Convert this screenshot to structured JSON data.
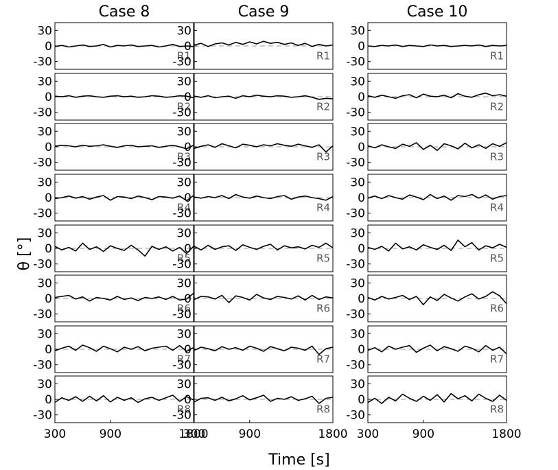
{
  "chart_data": {
    "type": "line",
    "columns": [
      "Case 8",
      "Case 9",
      "Case 10"
    ],
    "rows": [
      "R1",
      "R2",
      "R3",
      "R4",
      "R5",
      "R6",
      "R7",
      "R8"
    ],
    "xlabel": "Time [s]",
    "ylabel": "θ [°]",
    "xlim": [
      300,
      1800
    ],
    "xticks": [
      300,
      900,
      1800
    ],
    "ylim": [
      -45,
      45
    ],
    "yticks": [
      30,
      0,
      -30
    ],
    "x": [
      300,
      375,
      450,
      525,
      600,
      675,
      750,
      825,
      900,
      975,
      1050,
      1125,
      1200,
      1275,
      1350,
      1425,
      1500,
      1575,
      1650,
      1725,
      1800
    ],
    "reference": 0,
    "panels": [
      [
        {
          "label": "R1",
          "values": [
            -1,
            1,
            -2,
            0,
            2,
            -1,
            0,
            3,
            -2,
            1,
            0,
            2,
            -1,
            0,
            1,
            -2,
            0,
            3,
            -1,
            0,
            -1
          ]
        },
        {
          "label": "R2",
          "values": [
            1,
            0,
            2,
            -1,
            1,
            2,
            0,
            -1,
            1,
            2,
            0,
            1,
            -1,
            0,
            2,
            1,
            -1,
            0,
            2,
            1,
            -2
          ]
        },
        {
          "label": "R3",
          "values": [
            1,
            3,
            2,
            0,
            3,
            1,
            2,
            4,
            1,
            -1,
            2,
            3,
            0,
            1,
            2,
            -1,
            1,
            3,
            0,
            -4,
            3
          ]
        },
        {
          "label": "R4",
          "values": [
            -2,
            0,
            3,
            -1,
            2,
            -3,
            1,
            4,
            -5,
            2,
            1,
            -2,
            3,
            0,
            -4,
            2,
            1,
            -1,
            3,
            -6,
            4
          ]
        },
        {
          "label": "R5",
          "values": [
            4,
            -3,
            2,
            -5,
            10,
            -2,
            3,
            -6,
            5,
            0,
            -4,
            6,
            -3,
            -15,
            4,
            -2,
            3,
            -5,
            2,
            -10,
            4
          ]
        },
        {
          "label": "R6",
          "values": [
            2,
            4,
            6,
            -1,
            3,
            -5,
            2,
            0,
            -3,
            4,
            -2,
            1,
            -4,
            2,
            0,
            3,
            -2,
            4,
            -3,
            -1,
            10
          ]
        },
        {
          "label": "R7",
          "values": [
            -3,
            2,
            6,
            -2,
            8,
            3,
            -4,
            6,
            1,
            -5,
            4,
            0,
            5,
            -3,
            2,
            4,
            6,
            -2,
            7,
            -4,
            3
          ]
        },
        {
          "label": "R8",
          "values": [
            -6,
            3,
            -2,
            5,
            -4,
            6,
            -3,
            7,
            -5,
            4,
            -2,
            3,
            -6,
            1,
            4,
            -2,
            3,
            8,
            -4,
            5,
            -1
          ]
        }
      ],
      [
        {
          "label": "R1",
          "values": [
            2,
            5,
            -1,
            4,
            6,
            2,
            7,
            3,
            8,
            4,
            9,
            5,
            7,
            3,
            6,
            1,
            5,
            -1,
            3,
            0,
            2
          ]
        },
        {
          "label": "R2",
          "values": [
            1,
            -1,
            2,
            -2,
            0,
            1,
            -3,
            2,
            0,
            3,
            1,
            0,
            2,
            1,
            -1,
            0,
            2,
            -1,
            -5,
            -3,
            -4
          ]
        },
        {
          "label": "R3",
          "values": [
            -3,
            1,
            4,
            -1,
            6,
            2,
            -2,
            5,
            3,
            0,
            4,
            2,
            6,
            3,
            1,
            5,
            2,
            -1,
            4,
            -10,
            2
          ]
        },
        {
          "label": "R4",
          "values": [
            1,
            -1,
            2,
            0,
            4,
            -2,
            6,
            1,
            -1,
            3,
            0,
            -2,
            2,
            4,
            -3,
            1,
            3,
            0,
            -2,
            -5,
            2
          ]
        },
        {
          "label": "R5",
          "values": [
            4,
            -3,
            6,
            -2,
            3,
            5,
            -4,
            7,
            2,
            -2,
            4,
            8,
            -3,
            5,
            1,
            3,
            -1,
            6,
            2,
            10,
            1
          ]
        },
        {
          "label": "R6",
          "values": [
            -2,
            4,
            3,
            -1,
            6,
            -8,
            5,
            2,
            -3,
            8,
            1,
            -2,
            4,
            2,
            -1,
            5,
            -3,
            6,
            -2,
            3,
            1
          ]
        },
        {
          "label": "R7",
          "values": [
            -2,
            4,
            1,
            -3,
            5,
            0,
            3,
            -2,
            6,
            2,
            -4,
            5,
            1,
            -3,
            4,
            2,
            -2,
            6,
            -10,
            1,
            4
          ]
        },
        {
          "label": "R8",
          "values": [
            -5,
            2,
            3,
            -2,
            4,
            -3,
            1,
            7,
            -1,
            3,
            8,
            -4,
            2,
            0,
            5,
            -2,
            1,
            6,
            -8,
            2,
            4
          ]
        }
      ],
      [
        {
          "label": "R1",
          "values": [
            0,
            -1,
            1,
            0,
            2,
            -1,
            1,
            0,
            -1,
            2,
            0,
            1,
            -1,
            0,
            1,
            0,
            2,
            -1,
            1,
            0,
            1
          ]
        },
        {
          "label": "R2",
          "values": [
            2,
            -1,
            3,
            0,
            -3,
            2,
            4,
            -2,
            5,
            1,
            0,
            3,
            -2,
            6,
            1,
            -1,
            4,
            7,
            2,
            4,
            1
          ]
        },
        {
          "label": "R3",
          "values": [
            2,
            -2,
            4,
            0,
            -3,
            5,
            1,
            8,
            -5,
            3,
            -7,
            6,
            2,
            -4,
            7,
            -2,
            4,
            -3,
            6,
            1,
            8
          ]
        },
        {
          "label": "R4",
          "values": [
            -1,
            3,
            -2,
            4,
            0,
            -3,
            5,
            1,
            -4,
            6,
            -2,
            3,
            -5,
            4,
            2,
            6,
            -1,
            5,
            -3,
            2,
            4
          ]
        },
        {
          "label": "R5",
          "values": [
            2,
            -2,
            4,
            -5,
            10,
            -1,
            3,
            -3,
            7,
            2,
            -2,
            6,
            -4,
            16,
            3,
            11,
            -3,
            5,
            1,
            8,
            2
          ]
        },
        {
          "label": "R6",
          "values": [
            2,
            -3,
            4,
            -1,
            2,
            6,
            -2,
            4,
            -12,
            3,
            -4,
            8,
            1,
            -5,
            3,
            9,
            -1,
            4,
            13,
            5,
            -10
          ]
        },
        {
          "label": "R7",
          "values": [
            -2,
            3,
            -5,
            6,
            0,
            4,
            7,
            -6,
            2,
            8,
            -3,
            5,
            1,
            -4,
            6,
            2,
            -5,
            7,
            -2,
            4,
            -9
          ]
        },
        {
          "label": "R8",
          "values": [
            -6,
            2,
            -8,
            4,
            -3,
            10,
            2,
            -4,
            6,
            -2,
            9,
            -5,
            11,
            1,
            7,
            -3,
            10,
            2,
            -4,
            8,
            -2
          ]
        }
      ]
    ]
  }
}
